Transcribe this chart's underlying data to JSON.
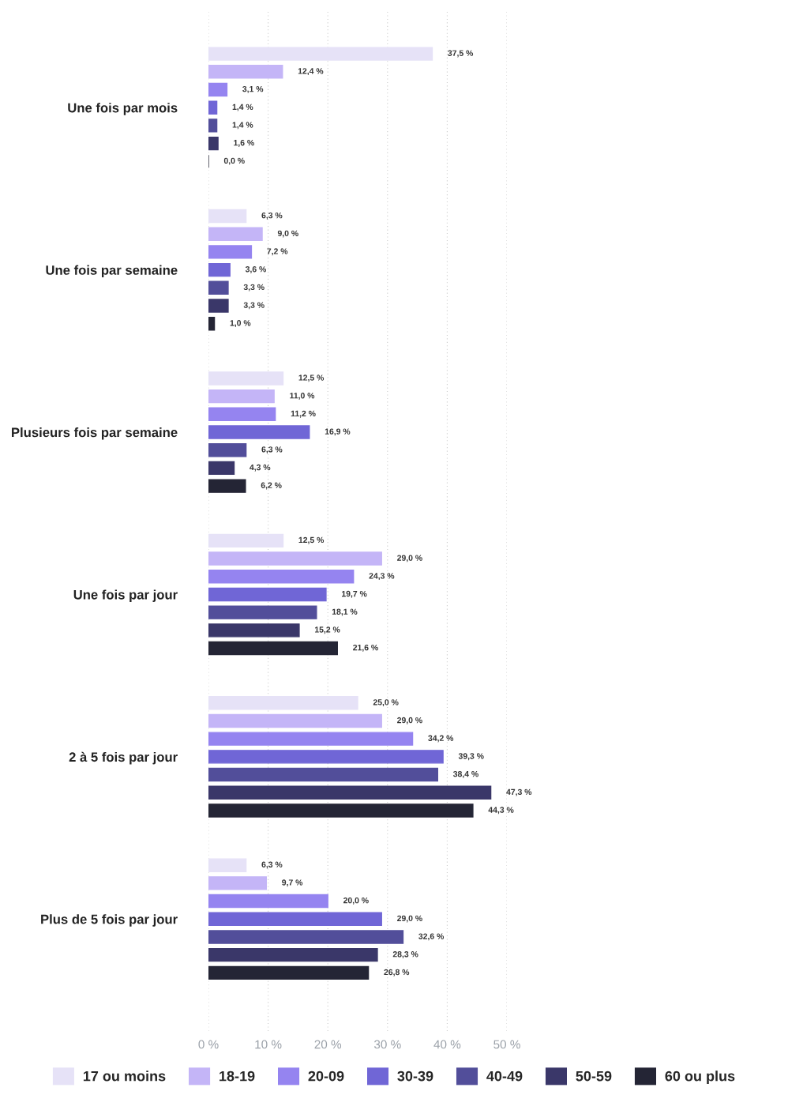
{
  "chart_data": {
    "type": "bar",
    "orientation": "horizontal",
    "categories": [
      "Une fois par mois",
      "Une fois par semaine",
      "Plusieurs fois par semaine",
      "Une fois par jour",
      "2 à 5 fois par jour",
      "Plus de 5 fois par jour"
    ],
    "series": [
      {
        "name": "17 ou moins",
        "color": "#e6e2f7",
        "values": [
          37.5,
          6.3,
          12.5,
          12.5,
          25.0,
          6.3
        ],
        "value_labels": [
          "37,5 %",
          "6,3 %",
          "12,5 %",
          "12,5 %",
          "25,0 %",
          "6,3 %"
        ]
      },
      {
        "name": "18-19",
        "color": "#c4b5f7",
        "values": [
          12.4,
          9.0,
          11.0,
          29.0,
          29.0,
          9.7
        ],
        "value_labels": [
          "12,4 %",
          "9,0 %",
          "11,0 %",
          "29,0 %",
          "29,0 %",
          "9,7 %"
        ]
      },
      {
        "name": "20-09",
        "color": "#9584f0",
        "values": [
          3.1,
          7.2,
          11.2,
          24.3,
          34.2,
          20.0
        ],
        "value_labels": [
          "3,1 %",
          "7,2 %",
          "11,2 %",
          "24,3 %",
          "34,2 %",
          "20,0 %"
        ]
      },
      {
        "name": "30-39",
        "color": "#7066d6",
        "values": [
          1.4,
          3.6,
          16.9,
          19.7,
          39.3,
          29.0
        ],
        "value_labels": [
          "1,4 %",
          "3,6 %",
          "16,9 %",
          "19,7 %",
          "39,3 %",
          "29,0 %"
        ]
      },
      {
        "name": "40-49",
        "color": "#524e9a",
        "values": [
          1.4,
          3.3,
          6.3,
          18.1,
          38.4,
          32.6
        ],
        "value_labels": [
          "1,4 %",
          "3,3 %",
          "6,3 %",
          "18,1 %",
          "38,4 %",
          "32,6 %"
        ]
      },
      {
        "name": "50-59",
        "color": "#3a3769",
        "values": [
          1.6,
          3.3,
          4.3,
          15.2,
          47.3,
          28.3
        ],
        "value_labels": [
          "1,6 %",
          "3,3 %",
          "4,3 %",
          "15,2 %",
          "47,3 %",
          "28,3 %"
        ]
      },
      {
        "name": "60 ou plus",
        "color": "#242535",
        "values": [
          0.0,
          1.0,
          6.2,
          21.6,
          44.3,
          26.8
        ],
        "value_labels": [
          "0,0 %",
          "1,0 %",
          "6,2 %",
          "21,6 %",
          "44,3 %",
          "26,8 %"
        ]
      }
    ],
    "xlim": [
      0,
      50
    ],
    "xticks": [
      {
        "value": 0,
        "label": "0 %"
      },
      {
        "value": 10,
        "label": "10 %"
      },
      {
        "value": 20,
        "label": "20 %"
      },
      {
        "value": 30,
        "label": "30 %"
      },
      {
        "value": 40,
        "label": "40 %"
      },
      {
        "value": 50,
        "label": "50 %"
      }
    ],
    "grid": "x",
    "legend": "bottom"
  }
}
